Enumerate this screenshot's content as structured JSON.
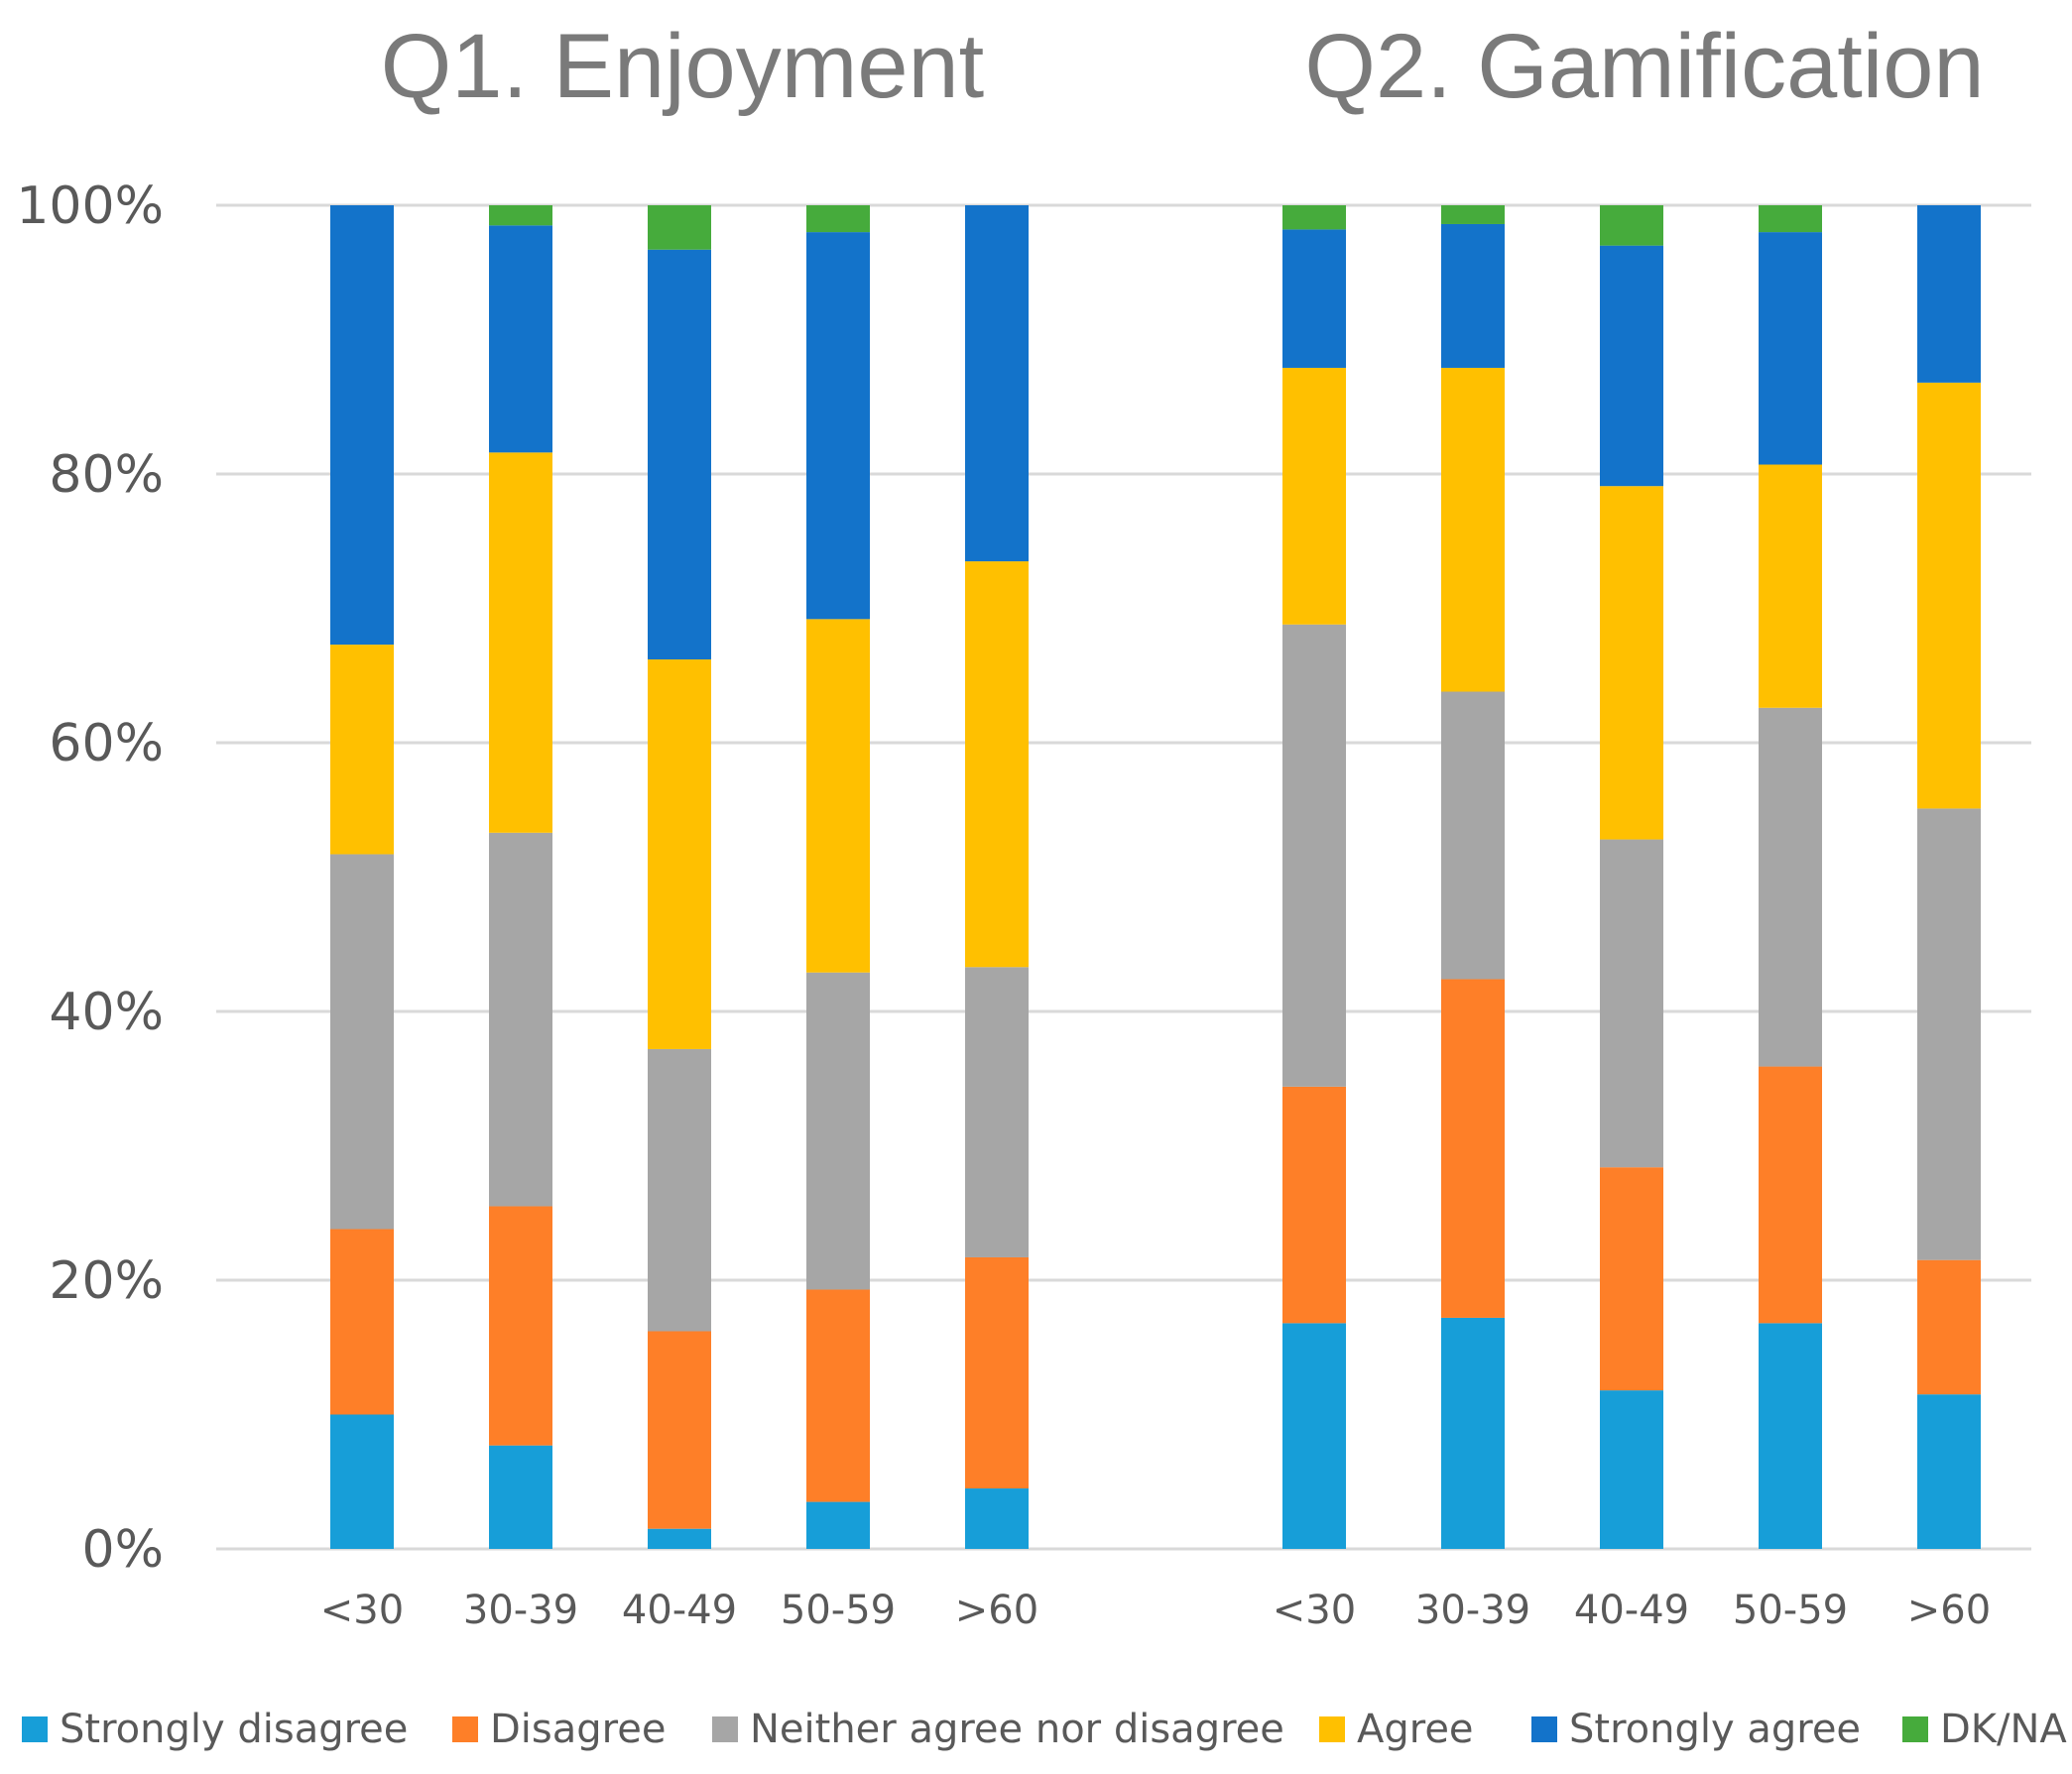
{
  "chart_data": [
    {
      "type": "bar",
      "stacked": true,
      "percent": true,
      "title": "Q1. Enjoyment",
      "xlabel": "",
      "ylabel": "",
      "ylim": [
        0,
        100
      ],
      "categories": [
        "<30",
        "30-39",
        "40-49",
        "50-59",
        ">60"
      ],
      "series": [
        {
          "name": "Strongly disagree",
          "color": "#179ed8",
          "values": [
            10,
            7.7,
            1.5,
            3.5,
            4.5
          ]
        },
        {
          "name": "Disagree",
          "color": "#fe7f28",
          "values": [
            13.8,
            17.8,
            14.7,
            15.8,
            17.2
          ]
        },
        {
          "name": "Neither agree nor disagree",
          "color": "#a6a6a6",
          "values": [
            27.9,
            27.8,
            21,
            23.6,
            21.6
          ]
        },
        {
          "name": "Agree",
          "color": "#ffc000",
          "values": [
            15.6,
            28.3,
            29,
            26.3,
            30.2
          ]
        },
        {
          "name": "Strongly agree",
          "color": "#1373ca",
          "values": [
            32.7,
            16.9,
            30.5,
            28.8,
            26.5
          ]
        },
        {
          "name": "DK/NA",
          "color": "#46ab3c",
          "values": [
            0,
            1.5,
            3.3,
            2,
            0
          ]
        }
      ],
      "yticks": [
        "0%",
        "20%",
        "40%",
        "60%",
        "80%",
        "100%"
      ],
      "legend": "bottom",
      "grid": true
    },
    {
      "type": "bar",
      "stacked": true,
      "percent": true,
      "title": "Q2. Gamification",
      "xlabel": "",
      "ylabel": "",
      "ylim": [
        0,
        100
      ],
      "categories": [
        "<30",
        "30-39",
        "40-49",
        "50-59",
        ">60"
      ],
      "series": [
        {
          "name": "Strongly disagree",
          "color": "#179ed8",
          "values": [
            16.8,
            17.2,
            11.8,
            16.8,
            11.5
          ]
        },
        {
          "name": "Disagree",
          "color": "#fe7f28",
          "values": [
            17.6,
            25.2,
            16.6,
            19.1,
            10
          ]
        },
        {
          "name": "Neither agree nor disagree",
          "color": "#a6a6a6",
          "values": [
            34.4,
            21.4,
            24.4,
            26.7,
            33.6
          ]
        },
        {
          "name": "Agree",
          "color": "#ffc000",
          "values": [
            19.1,
            24.1,
            26.3,
            18.1,
            31.7
          ]
        },
        {
          "name": "Strongly agree",
          "color": "#1373ca",
          "values": [
            10.3,
            10.7,
            17.9,
            17.3,
            13.2
          ]
        },
        {
          "name": "DK/NA",
          "color": "#46ab3c",
          "values": [
            1.8,
            1.4,
            3,
            2,
            0
          ]
        }
      ],
      "yticks": [
        "0%",
        "20%",
        "40%",
        "60%",
        "80%",
        "100%"
      ],
      "legend": "bottom",
      "grid": true
    }
  ],
  "legend": {
    "items": [
      {
        "name": "Strongly disagree",
        "color": "#179ed8"
      },
      {
        "name": "Disagree",
        "color": "#fe7f28"
      },
      {
        "name": "Neither agree nor disagree",
        "color": "#a6a6a6"
      },
      {
        "name": "Agree",
        "color": "#ffc000"
      },
      {
        "name": "Strongly agree",
        "color": "#1373ca"
      },
      {
        "name": "DK/NA",
        "color": "#46ab3c"
      }
    ]
  }
}
